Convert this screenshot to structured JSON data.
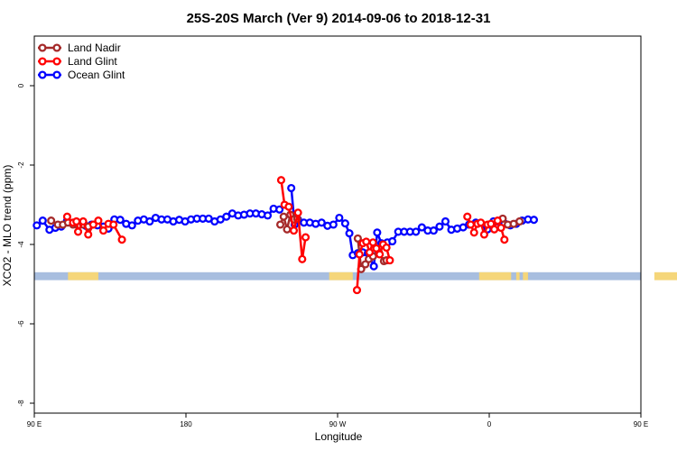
{
  "chart_data": {
    "type": "line",
    "title": "25S-20S March (Ver 9)   2014-09-06 to 2018-12-31",
    "xlabel": "Longitude",
    "ylabel": "XCO2 - MLO trend (ppm)",
    "xlim": [
      90,
      450
    ],
    "ylim": [
      -8.25,
      1.25
    ],
    "x_ticks": [
      {
        "value": 90,
        "label": "90 E"
      },
      {
        "value": 180,
        "label": "180"
      },
      {
        "value": 270,
        "label": "90 W"
      },
      {
        "value": 360,
        "label": "0"
      },
      {
        "value": 450,
        "label": "90 E"
      },
      {
        "value": 540,
        "label": "180"
      }
    ],
    "y_ticks": [
      {
        "value": 0,
        "label": "0"
      },
      {
        "value": -2,
        "label": "-2"
      },
      {
        "value": -4,
        "label": "-4"
      },
      {
        "value": -6,
        "label": "-6"
      },
      {
        "value": -8,
        "label": "-8"
      }
    ],
    "legend": {
      "position": "top-left",
      "entries": [
        {
          "name": "Land Nadir",
          "color": "#a52a2a"
        },
        {
          "name": "Land Glint",
          "color": "#ff0000"
        },
        {
          "name": "Ocean Glint",
          "color": "#0000ff"
        }
      ]
    },
    "land_ocean_band": {
      "y_range": [
        -4.7,
        -4.9
      ],
      "ocean_color": "#a8bedf",
      "land_color": "#f5d67a",
      "land_segments": [
        [
          110,
          128
        ],
        [
          265,
          279
        ],
        [
          354,
          373
        ],
        [
          376,
          378
        ],
        [
          380,
          383
        ],
        [
          458,
          480
        ]
      ]
    },
    "series": [
      {
        "name": "Ocean Glint",
        "color": "#0000ff",
        "segments": [
          [
            [
              91.5,
              -3.52
            ],
            [
              95,
              -3.4
            ],
            [
              99,
              -3.63
            ],
            [
              102.5,
              -3.58
            ],
            [
              106,
              -3.55
            ],
            [
              109.5,
              -3.4
            ],
            [
              113,
              -3.48
            ],
            [
              117,
              -3.5
            ],
            [
              120.5,
              -3.53
            ],
            [
              124,
              -3.5
            ],
            [
              127.5,
              -3.52
            ],
            [
              131,
              -3.55
            ],
            [
              134,
              -3.6
            ],
            [
              137.5,
              -3.37
            ],
            [
              141,
              -3.38
            ],
            [
              144.5,
              -3.48
            ],
            [
              148,
              -3.52
            ],
            [
              151.5,
              -3.4
            ],
            [
              155,
              -3.37
            ],
            [
              158.5,
              -3.42
            ],
            [
              162,
              -3.33
            ],
            [
              165.5,
              -3.37
            ],
            [
              169,
              -3.37
            ],
            [
              172.5,
              -3.42
            ],
            [
              176,
              -3.38
            ],
            [
              179.5,
              -3.42
            ],
            [
              183,
              -3.37
            ],
            [
              186.5,
              -3.35
            ],
            [
              190,
              -3.35
            ],
            [
              193.5,
              -3.35
            ],
            [
              197,
              -3.42
            ],
            [
              200.5,
              -3.37
            ],
            [
              204,
              -3.3
            ],
            [
              207.5,
              -3.22
            ],
            [
              211,
              -3.27
            ],
            [
              214.5,
              -3.25
            ],
            [
              218,
              -3.22
            ],
            [
              221.5,
              -3.22
            ],
            [
              225,
              -3.24
            ],
            [
              228.5,
              -3.27
            ],
            [
              232,
              -3.1
            ],
            [
              235.5,
              -3.12
            ]
          ],
          [
            [
              242.5,
              -2.58
            ],
            [
              244.5,
              -3.5
            ],
            [
              246.5,
              -3.37
            ]
          ],
          [
            [
              250,
              -3.45
            ],
            [
              253.5,
              -3.45
            ],
            [
              257,
              -3.48
            ],
            [
              260.5,
              -3.45
            ],
            [
              264,
              -3.53
            ],
            [
              267.5,
              -3.5
            ],
            [
              271,
              -3.33
            ],
            [
              274.5,
              -3.47
            ],
            [
              277,
              -3.72
            ],
            [
              279,
              -4.27
            ],
            [
              282,
              -4.22
            ],
            [
              285,
              -4.2
            ],
            [
              288,
              -4.22
            ],
            [
              291.5,
              -4.55
            ],
            [
              293.5,
              -3.7
            ],
            [
              296,
              -3.97
            ],
            [
              299.5,
              -3.95
            ],
            [
              302.5,
              -3.92
            ],
            [
              306,
              -3.68
            ],
            [
              309.5,
              -3.68
            ],
            [
              313,
              -3.68
            ],
            [
              316.5,
              -3.68
            ],
            [
              320,
              -3.57
            ],
            [
              323.5,
              -3.65
            ],
            [
              327,
              -3.65
            ],
            [
              330.5,
              -3.55
            ],
            [
              334,
              -3.42
            ],
            [
              337.5,
              -3.63
            ],
            [
              341,
              -3.6
            ],
            [
              344.5,
              -3.57
            ],
            [
              348,
              -3.5
            ],
            [
              352,
              -3.45
            ],
            [
              359,
              -3.62
            ],
            [
              362.5,
              -3.42
            ],
            [
              365.5,
              -3.42
            ],
            [
              369,
              -3.47
            ],
            [
              372.5,
              -3.52
            ],
            [
              376,
              -3.48
            ],
            [
              379.5,
              -3.4
            ],
            [
              383,
              -3.37
            ],
            [
              386.5,
              -3.38
            ]
          ]
        ]
      },
      {
        "name": "Land Nadir",
        "color": "#a52a2a",
        "segments": [
          [
            [
              100,
              -3.4
            ],
            [
              104,
              -3.5
            ],
            [
              107,
              -3.5
            ],
            [
              110,
              -3.45
            ],
            [
              113,
              -3.5
            ],
            [
              116,
              -3.52
            ],
            [
              119,
              -3.5
            ],
            [
              122,
              -3.55
            ]
          ],
          [
            [
              236,
              -3.5
            ],
            [
              238,
              -3.3
            ],
            [
              240,
              -3.62
            ],
            [
              242,
              -3.25
            ],
            [
              244,
              -3.37
            ],
            [
              246,
              -3.35
            ]
          ],
          [
            [
              282,
              -3.85
            ],
            [
              284,
              -4.62
            ],
            [
              286.5,
              -4.5
            ],
            [
              288.5,
              -4.37
            ],
            [
              291,
              -4.3
            ],
            [
              294.5,
              -4.2
            ],
            [
              297.5,
              -4.42
            ],
            [
              299,
              -4.4
            ]
          ],
          [
            [
              368,
              -3.35
            ],
            [
              371,
              -3.5
            ],
            [
              374.5,
              -3.48
            ],
            [
              378,
              -3.42
            ]
          ]
        ]
      },
      {
        "name": "Land Glint",
        "color": "#ff0000",
        "segments": [
          [
            [
              109.5,
              -3.3
            ],
            [
              113,
              -3.45
            ],
            [
              115,
              -3.42
            ],
            [
              116,
              -3.68
            ],
            [
              119,
              -3.42
            ],
            [
              122,
              -3.75
            ],
            [
              125,
              -3.5
            ],
            [
              128,
              -3.4
            ],
            [
              131,
              -3.65
            ],
            [
              134,
              -3.48
            ],
            [
              137,
              -3.5
            ],
            [
              142,
              -3.88
            ]
          ],
          [
            [
              236.5,
              -2.38
            ],
            [
              238.5,
              -3.0
            ],
            [
              241,
              -3.05
            ],
            [
              244,
              -3.65
            ],
            [
              246.5,
              -3.2
            ],
            [
              249,
              -4.37
            ],
            [
              251,
              -3.82
            ]
          ],
          [
            [
              281.5,
              -5.15
            ],
            [
              283,
              -4.25
            ],
            [
              285,
              -3.97
            ],
            [
              287,
              -3.93
            ],
            [
              289,
              -4.2
            ],
            [
              291,
              -3.95
            ],
            [
              293,
              -4.1
            ],
            [
              295,
              -4.25
            ],
            [
              297,
              -4.0
            ],
            [
              299,
              -4.08
            ],
            [
              301,
              -4.4
            ]
          ],
          [
            [
              347,
              -3.3
            ],
            [
              349,
              -3.5
            ],
            [
              351,
              -3.7
            ],
            [
              353,
              -3.48
            ],
            [
              355,
              -3.45
            ],
            [
              357,
              -3.75
            ],
            [
              359,
              -3.5
            ],
            [
              361,
              -3.48
            ],
            [
              363,
              -3.62
            ],
            [
              365,
              -3.4
            ],
            [
              367,
              -3.58
            ],
            [
              369,
              -3.88
            ]
          ]
        ]
      }
    ]
  }
}
